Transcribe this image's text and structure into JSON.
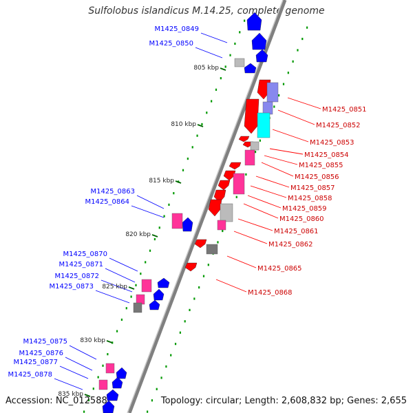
{
  "title": "Sulfolobus islandicus M.14.25, complete genome",
  "accession": "Accession: NC_012588",
  "topology": "Topology: circular; Length: 2,608,832 bp; Genes: 2,655",
  "colors": {
    "forward": "#ff0000",
    "reverse": "#0000ff",
    "magenta": "#ff3399",
    "lavender": "#8888ee",
    "cyan": "#00ffff",
    "gray": "#bbbbbb",
    "darkgray": "#777777",
    "backbone": "#808080",
    "dots": "#009900"
  },
  "kbp_labels": [
    "805 kbp",
    "810 kbp",
    "815 kbp",
    "820 kbp",
    "825 kbp",
    "830 kbp",
    "835 kbp"
  ],
  "left_genes": [
    "M1425_0849",
    "M1425_0850",
    "M1425_0863",
    "M1425_0864",
    "M1425_0870",
    "M1425_0871",
    "M1425_0872",
    "M1425_0873",
    "M1425_0875",
    "M1425_0876",
    "M1425_0877",
    "M1425_0878"
  ],
  "right_genes": [
    "M1425_0851",
    "M1425_0852",
    "M1425_0853",
    "M1425_0854",
    "M1425_0855",
    "M1425_0856",
    "M1425_0857",
    "M1425_0858",
    "M1425_0859",
    "M1425_0860",
    "M1425_0861",
    "M1425_0862",
    "M1425_0865",
    "M1425_0868"
  ]
}
